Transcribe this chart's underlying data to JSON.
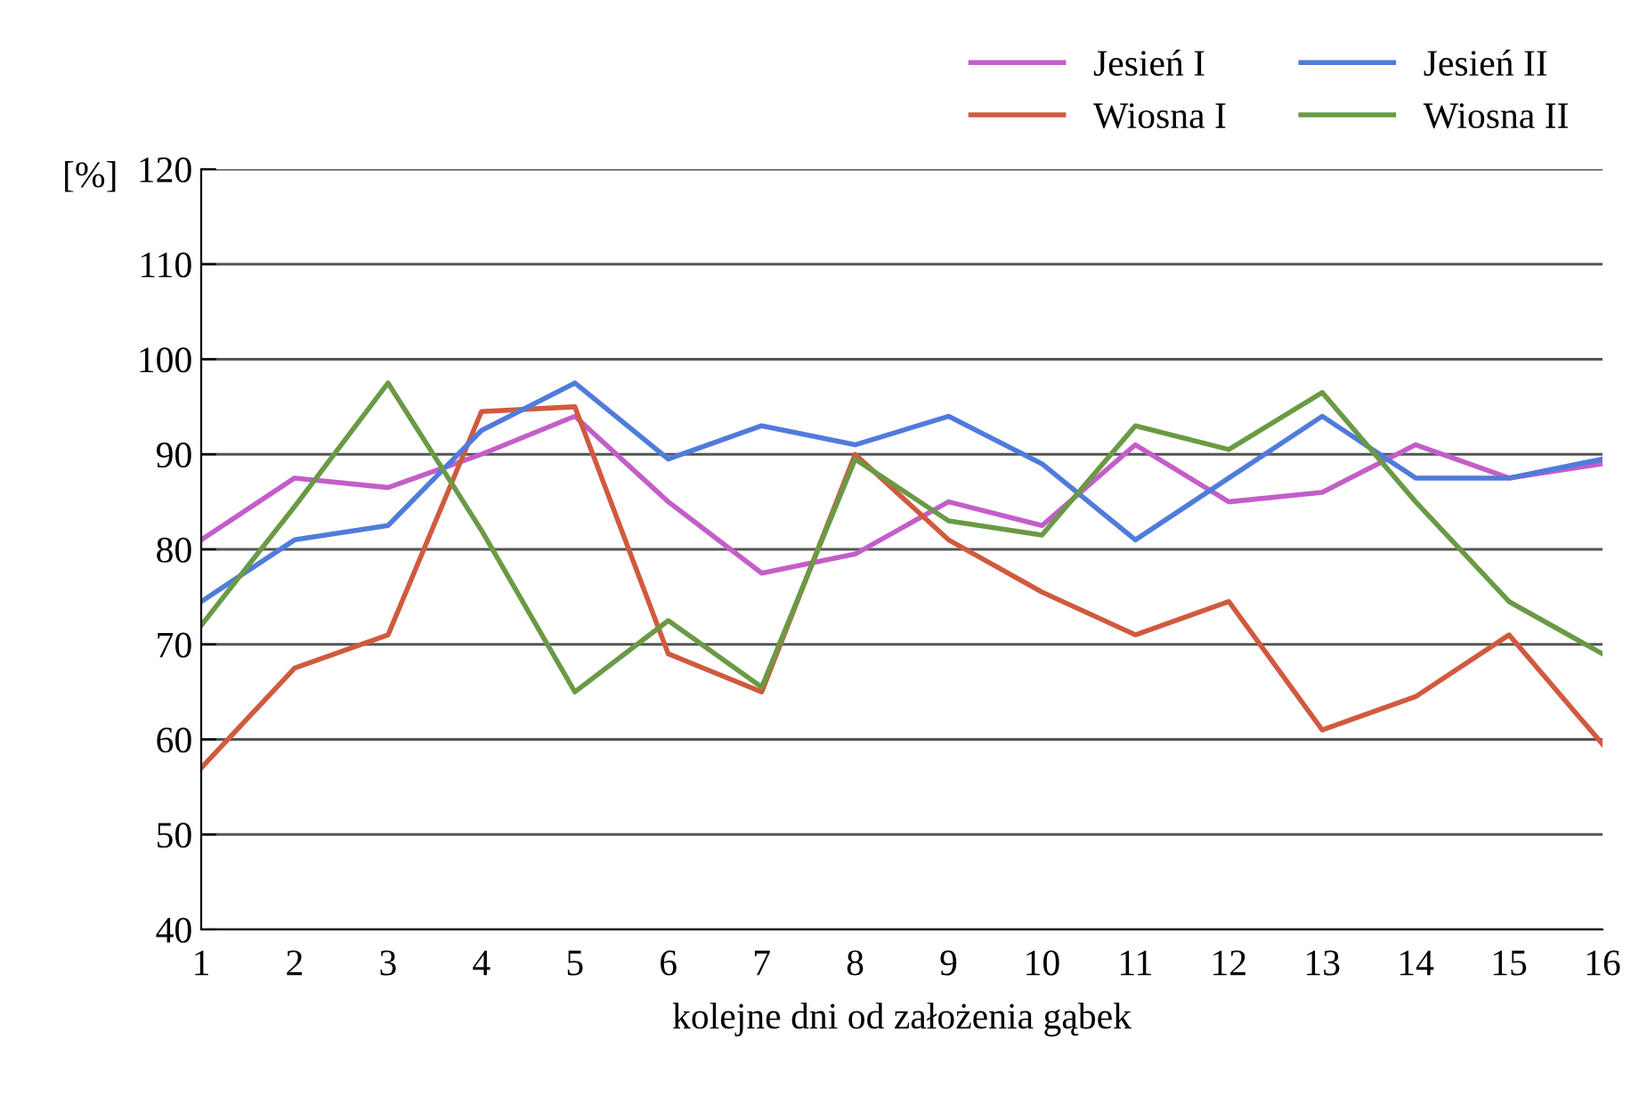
{
  "chart_data": {
    "type": "line",
    "ylabel": "[%]",
    "xlabel": "kolejne dni od założenia gąbek",
    "categories": [
      "1",
      "2",
      "3",
      "4",
      "5",
      "6",
      "7",
      "8",
      "9",
      "10",
      "11",
      "12",
      "13",
      "14",
      "15",
      "16"
    ],
    "series": [
      {
        "name": "Jesień I",
        "color": "#c35ec8",
        "values": [
          81,
          87.5,
          86.5,
          90,
          94,
          85,
          77.5,
          79.5,
          85,
          82.5,
          91,
          85,
          86,
          91,
          87.5,
          89
        ]
      },
      {
        "name": "Wiosna I",
        "color": "#d05a3e",
        "values": [
          57,
          67.5,
          71,
          94.5,
          95,
          69,
          65,
          90,
          81,
          75.5,
          71,
          74.5,
          61,
          64.5,
          71,
          59.5
        ]
      },
      {
        "name": "Jesień II",
        "color": "#4f7bdc",
        "values": [
          74.5,
          81,
          82.5,
          92.5,
          97.5,
          89.5,
          93,
          91,
          94,
          89,
          81,
          87.5,
          94,
          87.5,
          87.5,
          89.5
        ]
      },
      {
        "name": "Wiosna II",
        "color": "#6a9a45",
        "values": [
          72,
          84.5,
          97.5,
          82,
          65,
          72.5,
          65.5,
          89.5,
          83,
          81.5,
          93,
          90.5,
          96.5,
          85,
          74.5,
          69
        ]
      }
    ],
    "ylim": [
      40,
      120
    ],
    "yticks": [
      40,
      50,
      60,
      70,
      80,
      90,
      100,
      110,
      120
    ],
    "grid": "y",
    "legend": "top right",
    "marker": "none",
    "line_style": "solid"
  }
}
